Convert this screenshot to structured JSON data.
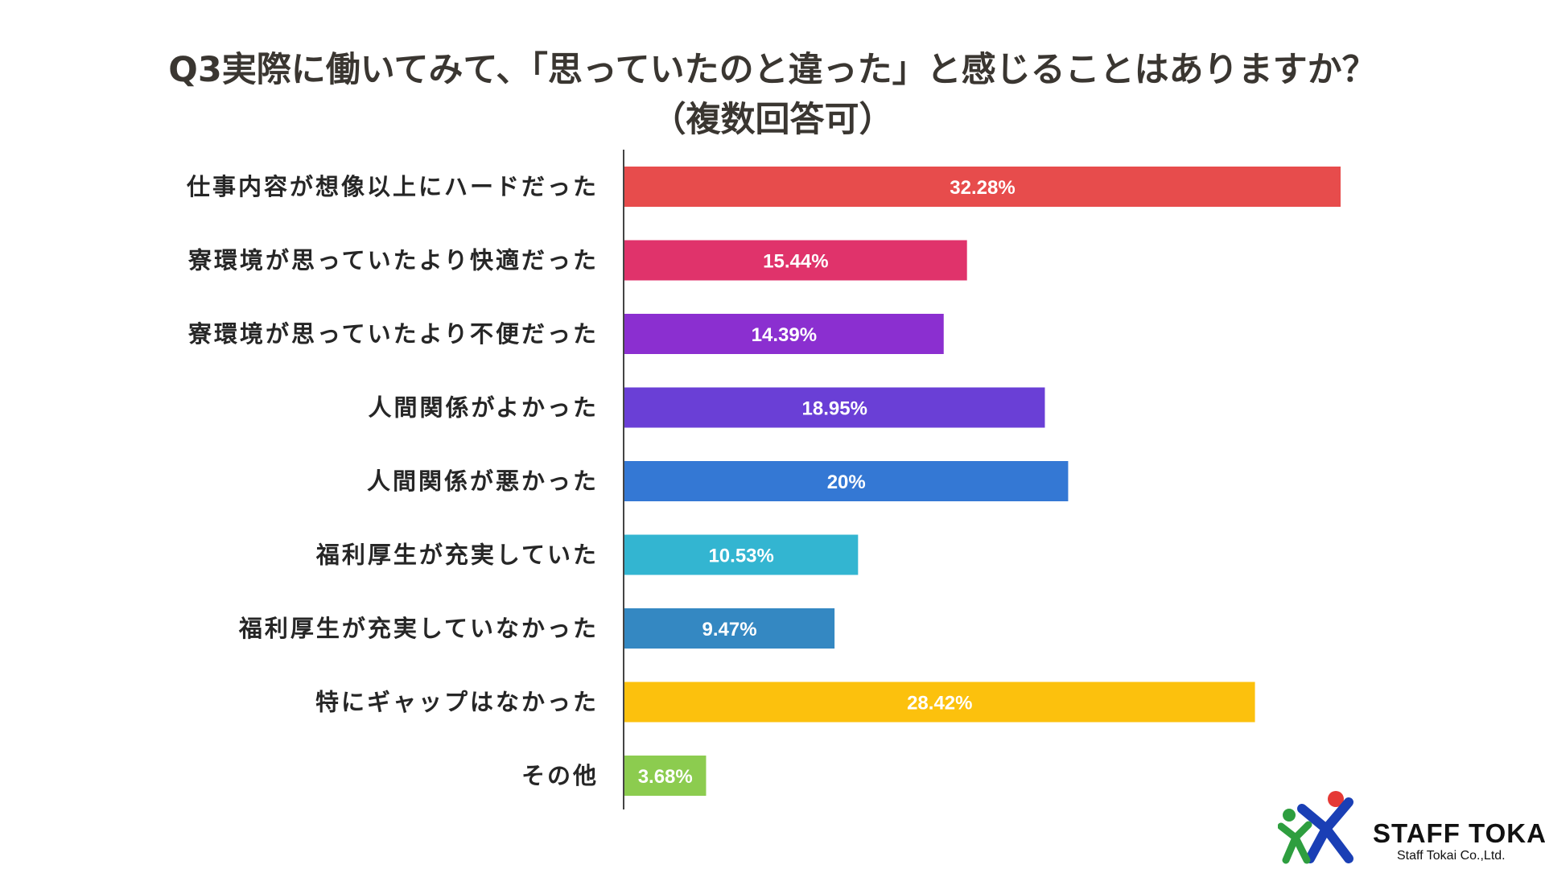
{
  "title": {
    "line1": "Q3実際に働いてみて、「思っていたのと違った」と感じることはありますか？",
    "line2": "（複数回答可）"
  },
  "chart_data": {
    "type": "bar",
    "orientation": "horizontal",
    "categories": [
      "仕事内容が想像以上にハードだった",
      "寮環境が思っていたより快適だった",
      "寮環境が思っていたより不便だった",
      "人間関係がよかった",
      "人間関係が悪かった",
      "福利厚生が充実していた",
      "福利厚生が充実していなかった",
      "特にギャップはなかった",
      "その他"
    ],
    "values": [
      32.28,
      15.44,
      14.39,
      18.95,
      20,
      10.53,
      9.47,
      28.42,
      3.68
    ],
    "value_labels": [
      "32.28%",
      "15.44%",
      "14.39%",
      "18.95%",
      "20%",
      "10.53%",
      "9.47%",
      "28.42%",
      "3.68%"
    ],
    "colors": [
      "#e74c4c",
      "#e0336b",
      "#8b2fd0",
      "#6a3fd6",
      "#3478d4",
      "#33b5d1",
      "#3488c2",
      "#fcc10d",
      "#8ccc4f"
    ],
    "xlim": [
      0,
      33
    ],
    "grid": false,
    "legend": "none"
  },
  "logo": {
    "name": "STAFF TOKAI",
    "subtitle": "Staff Tokai Co.,Ltd."
  }
}
